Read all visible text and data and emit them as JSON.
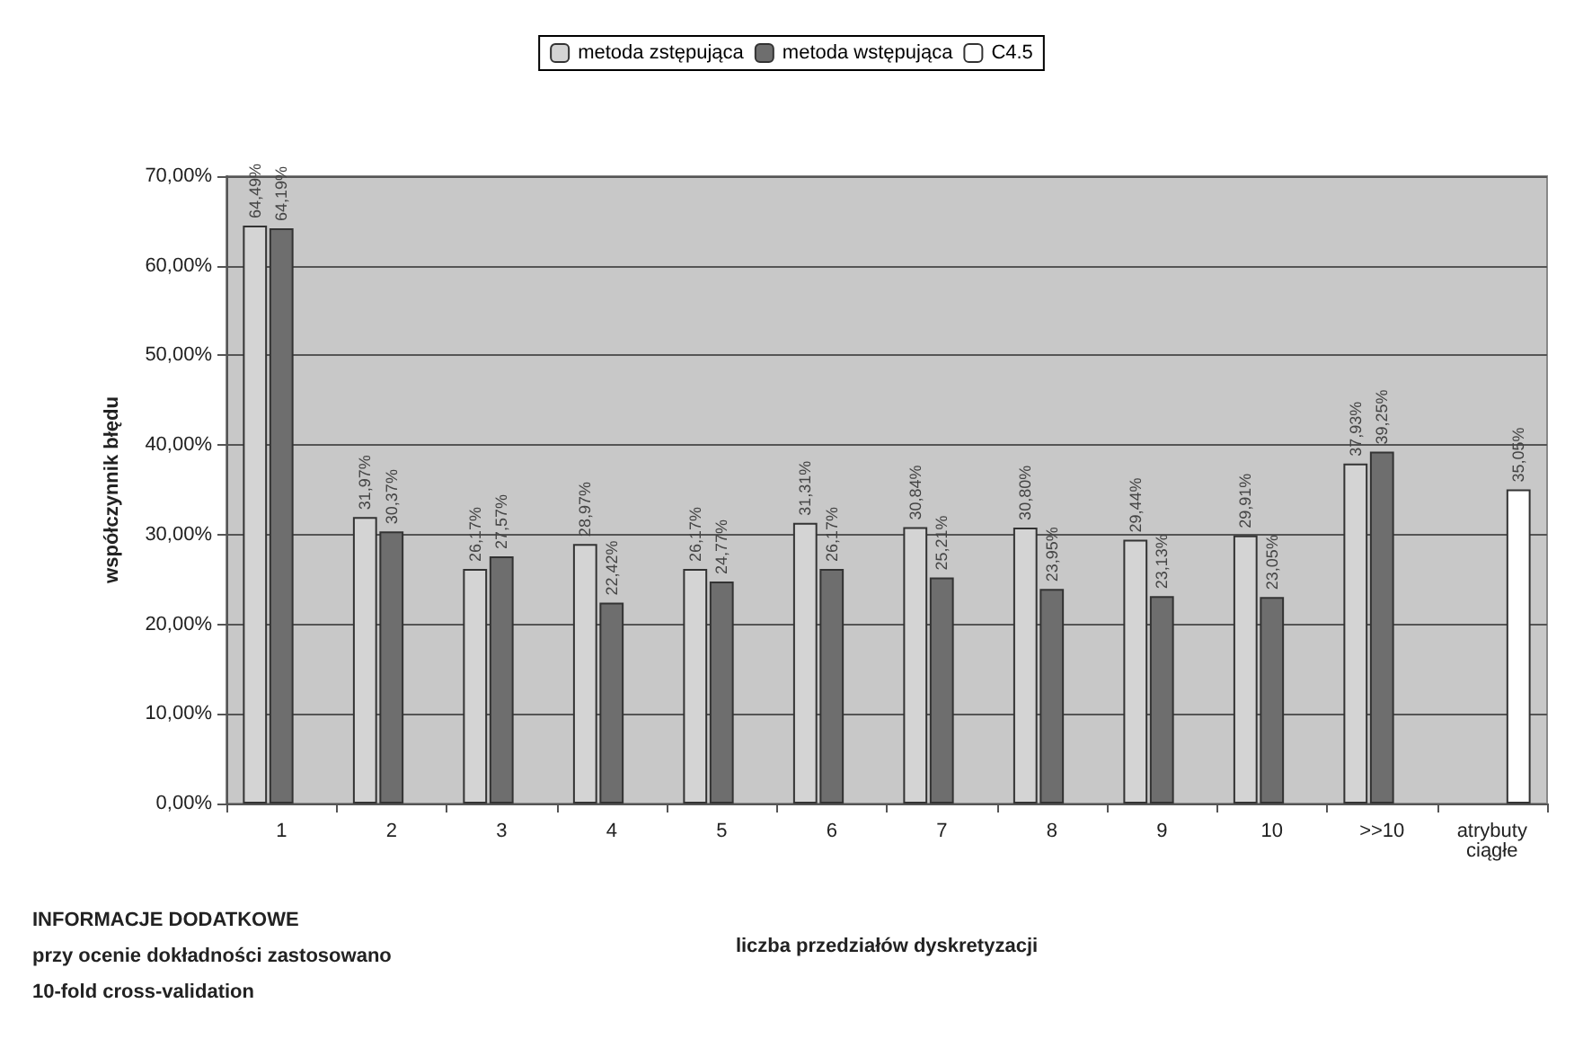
{
  "chart_data": {
    "type": "bar",
    "xlabel": "liczba przedziałów dyskretyzacji",
    "ylabel": "współczynnik błędu",
    "categories": [
      "1",
      "2",
      "3",
      "4",
      "5",
      "6",
      "7",
      "8",
      "9",
      "10",
      ">>10",
      "atrybuty\nciągłe"
    ],
    "series": [
      {
        "name": "metoda zstępująca",
        "color": "#d4d4d4",
        "values": [
          64.49,
          31.97,
          26.17,
          28.97,
          26.17,
          31.31,
          30.84,
          30.8,
          29.44,
          29.91,
          37.93,
          null
        ],
        "value_labels": [
          "64,49%",
          "31,97%",
          "26,17%",
          "28,97%",
          "26,17%",
          "31,31%",
          "30,84%",
          "30,80%",
          "29,44%",
          "29,91%",
          "37,93%",
          null
        ]
      },
      {
        "name": "metoda wstępująca",
        "color": "#6e6e6e",
        "values": [
          64.19,
          30.37,
          27.57,
          22.42,
          24.77,
          26.17,
          25.21,
          23.95,
          23.13,
          23.05,
          39.25,
          null
        ],
        "value_labels": [
          "64,19%",
          "30,37%",
          "27,57%",
          "22,42%",
          "24,77%",
          "26,17%",
          "25,21%",
          "23,95%",
          "23,13%",
          "23,05%",
          "39,25%",
          null
        ]
      },
      {
        "name": "C4.5",
        "color": "#ffffff",
        "values": [
          null,
          null,
          null,
          null,
          null,
          null,
          null,
          null,
          null,
          null,
          null,
          35.05
        ],
        "value_labels": [
          null,
          null,
          null,
          null,
          null,
          null,
          null,
          null,
          null,
          null,
          null,
          "35,05%"
        ]
      }
    ],
    "ylim": [
      0,
      70
    ],
    "yticks": [
      {
        "value": 0,
        "label": "0,00%"
      },
      {
        "value": 10,
        "label": "10,00%"
      },
      {
        "value": 20,
        "label": "20,00%"
      },
      {
        "value": 30,
        "label": "30,00%"
      },
      {
        "value": 40,
        "label": "40,00%"
      },
      {
        "value": 50,
        "label": "50,00%"
      },
      {
        "value": 60,
        "label": "60,00%"
      },
      {
        "value": 70,
        "label": "70,00%"
      }
    ],
    "grid": "y",
    "legend": "top",
    "annotations": [
      "INFORMACJE DODATKOWE\nprzy ocenie dokładności zastosowano\n10-fold cross-validation"
    ]
  }
}
